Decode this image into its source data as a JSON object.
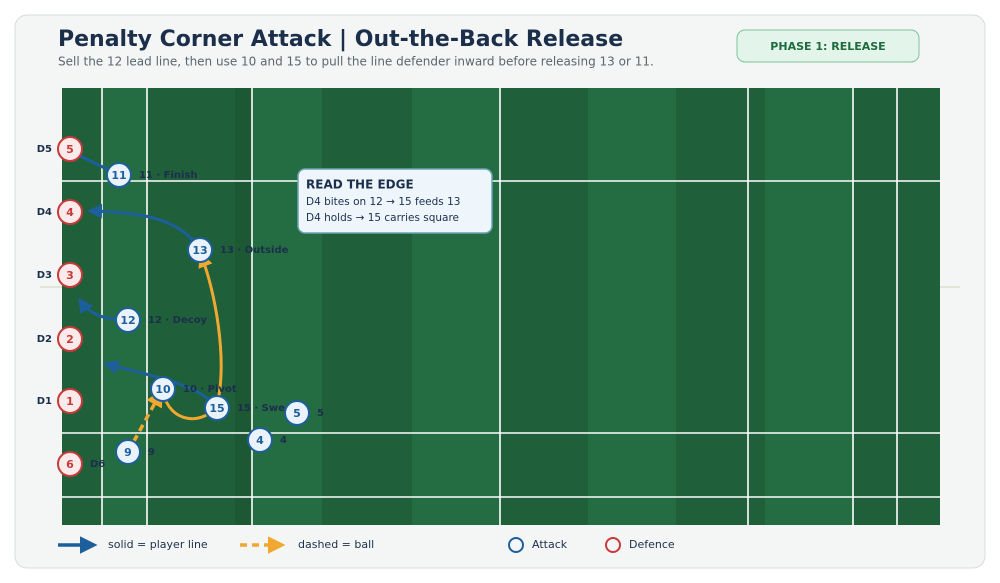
{
  "header": {
    "title": "Penalty Corner Attack | Out-the-Back Release",
    "subtitle": "Sell the 12 lead line, then use 10 and 15 to pull the line defender inward before releasing 13 or 11."
  },
  "phase_badge": "PHASE 1: RELEASE",
  "callout": {
    "title": "READ THE EDGE",
    "lines": [
      "D4 bites on 12 → 15 feeds 13",
      "D4 holds → 15 carries square"
    ]
  },
  "attackers": [
    {
      "number": "11",
      "label": "11 · Finish"
    },
    {
      "number": "13",
      "label": "13 · Outside"
    },
    {
      "number": "12",
      "label": "12 · Decoy"
    },
    {
      "number": "10",
      "label": "10 · Pivot"
    },
    {
      "number": "15",
      "label": "15 · Sweep"
    },
    {
      "number": "5",
      "label": "5"
    },
    {
      "number": "4",
      "label": "4"
    },
    {
      "number": "9",
      "label": "9"
    }
  ],
  "defenders": [
    {
      "row_label": "D5",
      "number": "5"
    },
    {
      "row_label": "D4",
      "number": "4"
    },
    {
      "row_label": "D3",
      "number": "3"
    },
    {
      "row_label": "D2",
      "number": "2"
    },
    {
      "row_label": "D1",
      "number": "1"
    },
    {
      "row_label": "D6",
      "number": "6"
    }
  ],
  "legend": [
    "solid = player line",
    "dashed = ball",
    "Attack",
    "Defence"
  ]
}
